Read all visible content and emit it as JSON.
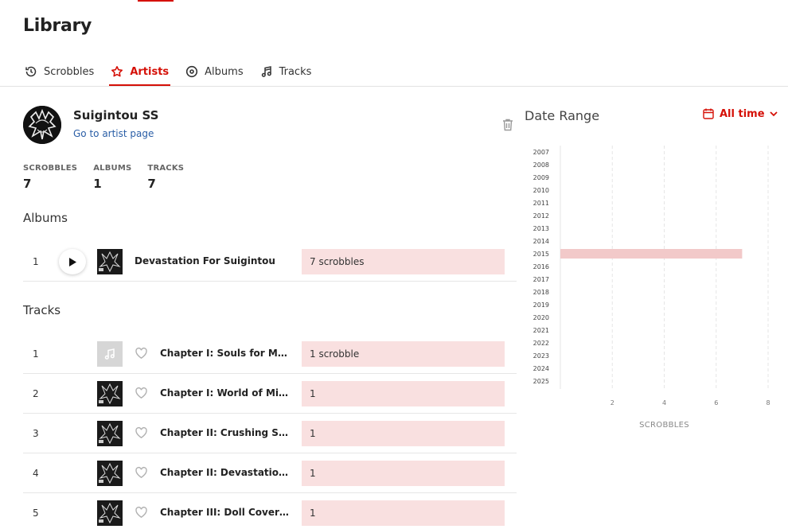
{
  "page_title": "Library",
  "tabs": [
    {
      "label": "Scrobbles",
      "icon": "history-icon",
      "active": false
    },
    {
      "label": "Artists",
      "icon": "star-icon",
      "active": true
    },
    {
      "label": "Albums",
      "icon": "disc-icon",
      "active": false
    },
    {
      "label": "Tracks",
      "icon": "music-note-icon",
      "active": false
    }
  ],
  "artist": {
    "name": "Suigintou SS",
    "link_label": "Go to artist page"
  },
  "stats": [
    {
      "label": "SCROBBLES",
      "value": "7"
    },
    {
      "label": "ALBUMS",
      "value": "1"
    },
    {
      "label": "TRACKS",
      "value": "7"
    }
  ],
  "albums_section": {
    "title": "Albums",
    "items": [
      {
        "index": "1",
        "title": "Devastation For Suigintou",
        "scrobbles": "7 scrobbles"
      }
    ]
  },
  "tracks_section": {
    "title": "Tracks",
    "items": [
      {
        "index": "1",
        "title": "Chapter I: Souls for Mega...",
        "scrobbles": "1 scrobble",
        "placeholder_cover": true
      },
      {
        "index": "2",
        "title": "Chapter I: World of Mirrors",
        "scrobbles": "1",
        "placeholder_cover": false
      },
      {
        "index": "3",
        "title": "Chapter II: Crushing Shi...",
        "scrobbles": "1",
        "placeholder_cover": false
      },
      {
        "index": "4",
        "title": "Chapter II: Devastation f...",
        "scrobbles": "1",
        "placeholder_cover": false
      },
      {
        "index": "5",
        "title": "Chapter III: Doll Covered...",
        "scrobbles": "1",
        "placeholder_cover": false
      }
    ]
  },
  "date_range": {
    "title": "Date Range",
    "selected": "All time"
  },
  "colors": {
    "accent": "#d51007",
    "bar_fill": "#f9e0e0",
    "chart_bar": "#f2c9c9",
    "link": "#2a5ea6"
  },
  "chart_data": {
    "type": "bar",
    "orientation": "horizontal",
    "categories": [
      "2007",
      "2008",
      "2009",
      "2010",
      "2011",
      "2012",
      "2013",
      "2014",
      "2015",
      "2016",
      "2017",
      "2018",
      "2019",
      "2020",
      "2021",
      "2022",
      "2023",
      "2024",
      "2025"
    ],
    "values": [
      0,
      0,
      0,
      0,
      0,
      0,
      0,
      0,
      7,
      0,
      0,
      0,
      0,
      0,
      0,
      0,
      0,
      0,
      0
    ],
    "xlabel": "SCROBBLES",
    "xticks": [
      "2",
      "4",
      "6",
      "8"
    ],
    "xlim": [
      0,
      8
    ],
    "grid": true
  }
}
